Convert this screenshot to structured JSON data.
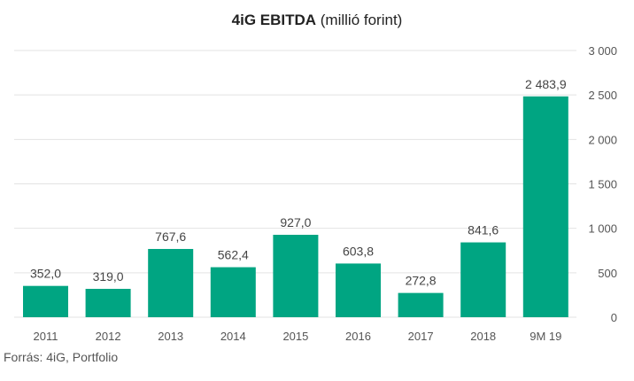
{
  "chart_data": {
    "type": "bar",
    "title_bold": "4iG EBITDA",
    "title_rest": " (millió forint)",
    "categories": [
      "2011",
      "2012",
      "2013",
      "2014",
      "2015",
      "2016",
      "2017",
      "2018",
      "9M 19"
    ],
    "values": [
      352.0,
      319.0,
      767.6,
      562.4,
      927.0,
      603.8,
      272.8,
      841.6,
      2483.9
    ],
    "value_labels": [
      "352,0",
      "319,0",
      "767,6",
      "562,4",
      "927,0",
      "603,8",
      "272,8",
      "841,6",
      "2 483,9"
    ],
    "y_ticks": [
      0,
      500,
      1000,
      1500,
      2000,
      2500,
      3000
    ],
    "y_tick_labels": [
      "0",
      "500",
      "1 000",
      "1 500",
      "2 000",
      "2 500",
      "3 000"
    ],
    "ylim": [
      0,
      3000
    ],
    "y_axis_position": "right",
    "grid": true,
    "bar_color": "#00a582",
    "grid_color": "#e3e3e3"
  },
  "source": "Forrás: 4iG, Portfolio"
}
